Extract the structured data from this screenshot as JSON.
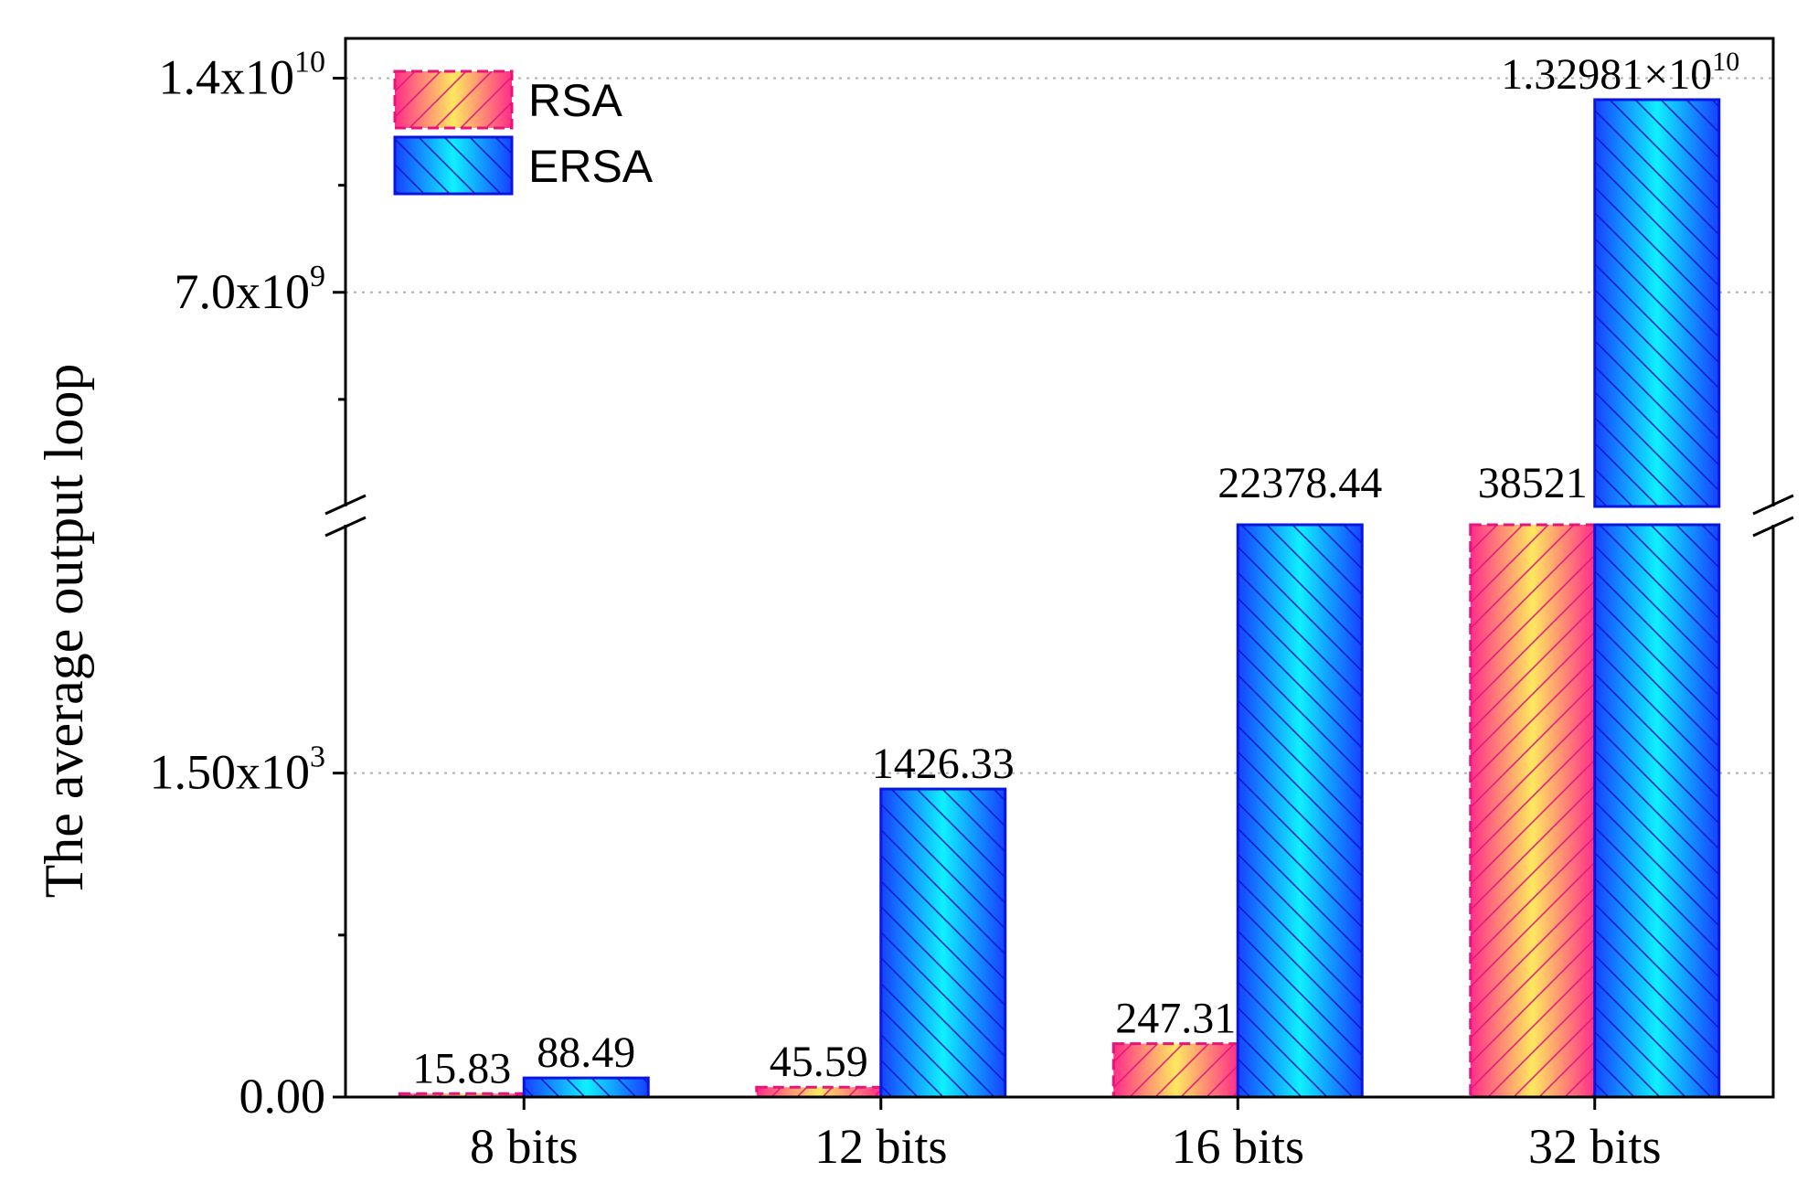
{
  "chart_data": {
    "type": "bar",
    "title": "",
    "xlabel": "",
    "ylabel": "The average output loop",
    "categories": [
      "8 bits",
      "12 bits",
      "16 bits",
      "32 bits"
    ],
    "axis_break": true,
    "lower_segment": {
      "ylim": [
        0,
        2650
      ],
      "ticks": [
        {
          "value": 0,
          "label": "0.00"
        },
        {
          "value": 1500,
          "label": "1.50x10",
          "exp": "3"
        }
      ],
      "minor_ticks": [
        750
      ]
    },
    "upper_segment": {
      "ylim": [
        0,
        15300000000
      ],
      "ticks": [
        {
          "value": 7000000000,
          "label": "7.0x10",
          "exp": "9"
        },
        {
          "value": 14000000000,
          "label": "1.4x10",
          "exp": "10"
        }
      ],
      "minor_ticks": [
        3500000000,
        10500000000
      ]
    },
    "grid": "dotted horizontal at major ticks",
    "legend_position": "top-left",
    "series": [
      {
        "name": "RSA",
        "values": [
          15.83,
          45.59,
          247.31,
          38521
        ],
        "labels": [
          "15.83",
          "45.59",
          "247.31",
          "38521"
        ],
        "color": "#ff2d8a",
        "color_mid": "#ffe860",
        "edge": "#e5157a"
      },
      {
        "name": "ERSA",
        "values": [
          88.49,
          1426.33,
          22378.44,
          13298100000
        ],
        "labels": [
          "88.49",
          "1426.33",
          "22378.44",
          "1.32981×10"
        ],
        "label_exp": [
          null,
          null,
          null,
          "10"
        ],
        "color": "#1640ff",
        "color_mid": "#10f0ff",
        "edge": "#0a16e0"
      }
    ]
  }
}
